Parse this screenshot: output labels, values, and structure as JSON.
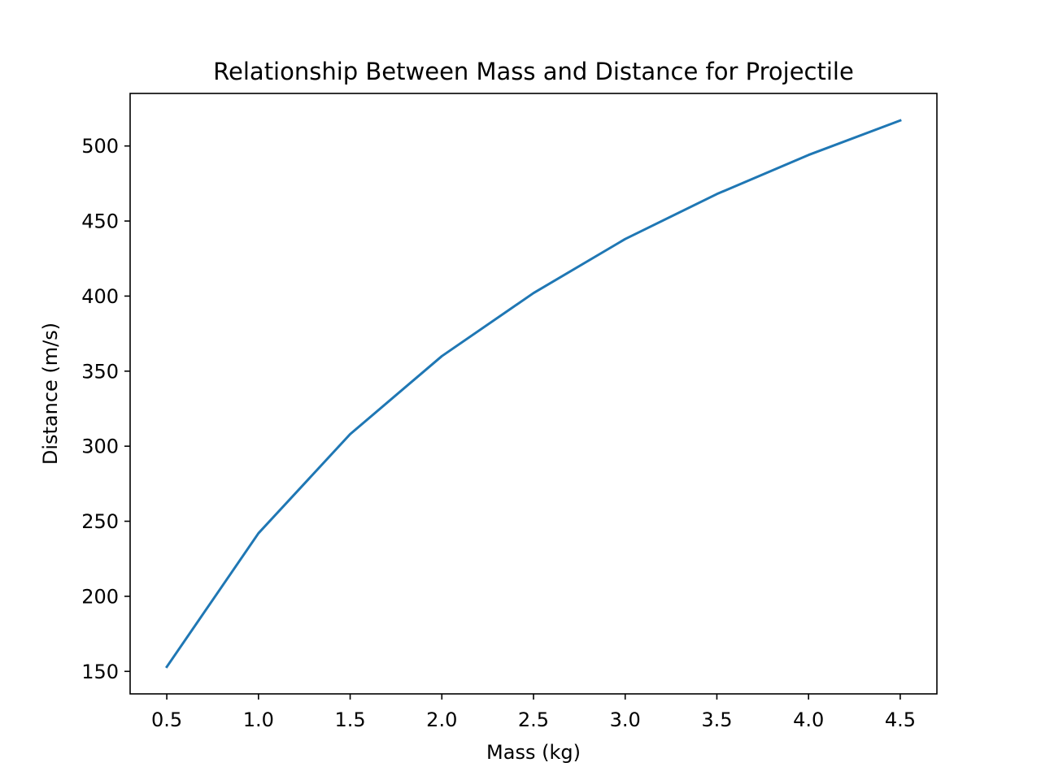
{
  "chart_data": {
    "type": "line",
    "title": "Relationship Between Mass and Distance for Projectile",
    "xlabel": "Mass (kg)",
    "ylabel": "Distance (m/s)",
    "x": [
      0.5,
      1.0,
      1.5,
      2.0,
      2.5,
      3.0,
      3.5,
      4.0,
      4.5
    ],
    "series": [
      {
        "values": [
          153,
          242,
          308,
          360,
          402,
          438,
          468,
          494,
          517
        ],
        "color": "#1f77b4"
      }
    ],
    "xlim": [
      0.3,
      4.7
    ],
    "ylim": [
      135,
      535
    ],
    "xticks": [
      0.5,
      1.0,
      1.5,
      2.0,
      2.5,
      3.0,
      3.5,
      4.0,
      4.5
    ],
    "xtick_labels": [
      "0.5",
      "1.0",
      "1.5",
      "2.0",
      "2.5",
      "3.0",
      "3.5",
      "4.0",
      "4.5"
    ],
    "yticks": [
      150,
      200,
      250,
      300,
      350,
      400,
      450,
      500
    ],
    "ytick_labels": [
      "150",
      "200",
      "250",
      "300",
      "350",
      "400",
      "450",
      "500"
    ],
    "grid": false,
    "legend": "none"
  }
}
